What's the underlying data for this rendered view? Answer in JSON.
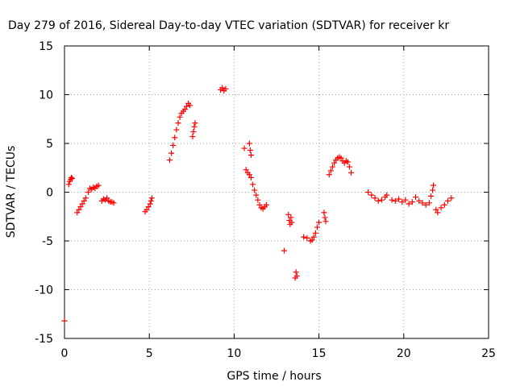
{
  "chart_data": {
    "type": "scatter",
    "title": "Day 279 of 2016, Sidereal Day-to-day VTEC variation (SDTVAR) for receiver kr",
    "xlabel": "GPS time / hours",
    "ylabel": "SDTVAR / TECUs",
    "xlim": [
      0,
      25
    ],
    "ylim": [
      -15,
      15
    ],
    "xticks": [
      0,
      5,
      10,
      15,
      20,
      25
    ],
    "yticks": [
      -15,
      -10,
      -5,
      0,
      5,
      10,
      15
    ],
    "grid": true,
    "marker": "+",
    "color": "#ff0000",
    "series": [
      {
        "segments": [
          [
            [
              0.0,
              -13.2
            ]
          ],
          [
            [
              0.25,
              0.8
            ],
            [
              0.3,
              1.1
            ],
            [
              0.35,
              1.3
            ],
            [
              0.4,
              1.5
            ],
            [
              0.45,
              1.4
            ]
          ],
          [
            [
              0.75,
              -2.1
            ],
            [
              0.85,
              -1.8
            ],
            [
              0.95,
              -1.5
            ],
            [
              1.05,
              -1.2
            ],
            [
              1.15,
              -0.9
            ],
            [
              1.25,
              -0.6
            ]
          ],
          [
            [
              1.4,
              0.0
            ],
            [
              1.5,
              0.4
            ],
            [
              1.6,
              0.3
            ],
            [
              1.7,
              0.5
            ],
            [
              1.8,
              0.4
            ],
            [
              1.9,
              0.6
            ],
            [
              2.0,
              0.7
            ]
          ],
          [
            [
              2.2,
              -0.9
            ],
            [
              2.3,
              -0.7
            ],
            [
              2.4,
              -0.8
            ],
            [
              2.5,
              -0.6
            ],
            [
              2.6,
              -0.9
            ],
            [
              2.7,
              -1.0
            ],
            [
              2.8,
              -1.0
            ],
            [
              2.9,
              -1.1
            ]
          ],
          [
            [
              4.75,
              -2.0
            ],
            [
              4.85,
              -1.8
            ],
            [
              4.95,
              -1.5
            ],
            [
              5.05,
              -1.2
            ],
            [
              5.1,
              -0.9
            ],
            [
              5.15,
              -0.6
            ]
          ],
          [
            [
              6.2,
              3.3
            ],
            [
              6.3,
              4.0
            ],
            [
              6.4,
              4.8
            ],
            [
              6.5,
              5.6
            ],
            [
              6.6,
              6.4
            ],
            [
              6.7,
              7.1
            ],
            [
              6.8,
              7.7
            ],
            [
              6.9,
              8.1
            ],
            [
              7.0,
              8.3
            ],
            [
              7.1,
              8.5
            ],
            [
              7.2,
              8.8
            ],
            [
              7.3,
              9.1
            ],
            [
              7.4,
              8.9
            ]
          ],
          [
            [
              7.55,
              5.7
            ],
            [
              7.6,
              6.2
            ],
            [
              7.65,
              6.7
            ],
            [
              7.7,
              7.1
            ]
          ],
          [
            [
              9.2,
              10.5
            ],
            [
              9.3,
              10.7
            ],
            [
              9.4,
              10.4
            ],
            [
              9.5,
              10.6
            ]
          ],
          [
            [
              10.6,
              4.5
            ]
          ],
          [
            [
              10.9,
              5.0
            ],
            [
              10.95,
              4.3
            ],
            [
              11.0,
              3.8
            ]
          ],
          [
            [
              10.7,
              2.3
            ],
            [
              10.8,
              2.0
            ],
            [
              10.9,
              1.8
            ],
            [
              11.0,
              1.5
            ],
            [
              11.1,
              0.8
            ],
            [
              11.2,
              0.2
            ],
            [
              11.3,
              -0.3
            ],
            [
              11.4,
              -0.8
            ],
            [
              11.5,
              -1.3
            ],
            [
              11.6,
              -1.6
            ],
            [
              11.7,
              -1.7
            ],
            [
              11.8,
              -1.5
            ],
            [
              11.9,
              -1.3
            ]
          ],
          [
            [
              12.95,
              -6.0
            ]
          ],
          [
            [
              13.2,
              -2.3
            ],
            [
              13.25,
              -2.9
            ],
            [
              13.3,
              -3.3
            ],
            [
              13.35,
              -2.6
            ],
            [
              13.4,
              -3.1
            ]
          ],
          [
            [
              13.6,
              -8.8
            ],
            [
              13.65,
              -8.2
            ],
            [
              13.7,
              -8.6
            ]
          ],
          [
            [
              14.1,
              -4.6
            ],
            [
              14.3,
              -4.7
            ],
            [
              14.5,
              -5.0
            ],
            [
              14.6,
              -4.9
            ],
            [
              14.7,
              -4.6
            ],
            [
              14.8,
              -4.2
            ],
            [
              14.9,
              -3.6
            ],
            [
              15.0,
              -3.1
            ]
          ],
          [
            [
              15.3,
              -2.1
            ],
            [
              15.35,
              -2.6
            ],
            [
              15.4,
              -3.0
            ]
          ],
          [
            [
              15.6,
              1.8
            ],
            [
              15.7,
              2.2
            ],
            [
              15.8,
              2.6
            ],
            [
              15.9,
              3.0
            ],
            [
              16.0,
              3.3
            ],
            [
              16.1,
              3.5
            ],
            [
              16.2,
              3.6
            ],
            [
              16.3,
              3.5
            ],
            [
              16.4,
              3.2
            ],
            [
              16.5,
              3.0
            ],
            [
              16.6,
              3.2
            ],
            [
              16.7,
              3.1
            ],
            [
              16.8,
              2.6
            ],
            [
              16.9,
              2.0
            ]
          ],
          [
            [
              17.9,
              0.0
            ],
            [
              18.1,
              -0.3
            ],
            [
              18.3,
              -0.6
            ],
            [
              18.5,
              -0.9
            ],
            [
              18.7,
              -0.8
            ],
            [
              18.9,
              -0.5
            ],
            [
              19.0,
              -0.3
            ]
          ],
          [
            [
              19.3,
              -0.8
            ],
            [
              19.5,
              -0.9
            ],
            [
              19.7,
              -0.7
            ],
            [
              19.9,
              -1.0
            ],
            [
              20.1,
              -0.8
            ],
            [
              20.3,
              -1.2
            ],
            [
              20.5,
              -1.0
            ],
            [
              20.7,
              -0.5
            ],
            [
              20.9,
              -0.9
            ],
            [
              21.1,
              -1.1
            ],
            [
              21.3,
              -1.3
            ],
            [
              21.5,
              -1.1
            ],
            [
              21.6,
              -0.4
            ],
            [
              21.7,
              0.2
            ],
            [
              21.75,
              0.7
            ]
          ],
          [
            [
              21.9,
              -1.8
            ],
            [
              22.0,
              -2.1
            ],
            [
              22.2,
              -1.6
            ],
            [
              22.4,
              -1.3
            ],
            [
              22.6,
              -0.9
            ],
            [
              22.8,
              -0.6
            ]
          ]
        ]
      }
    ]
  }
}
